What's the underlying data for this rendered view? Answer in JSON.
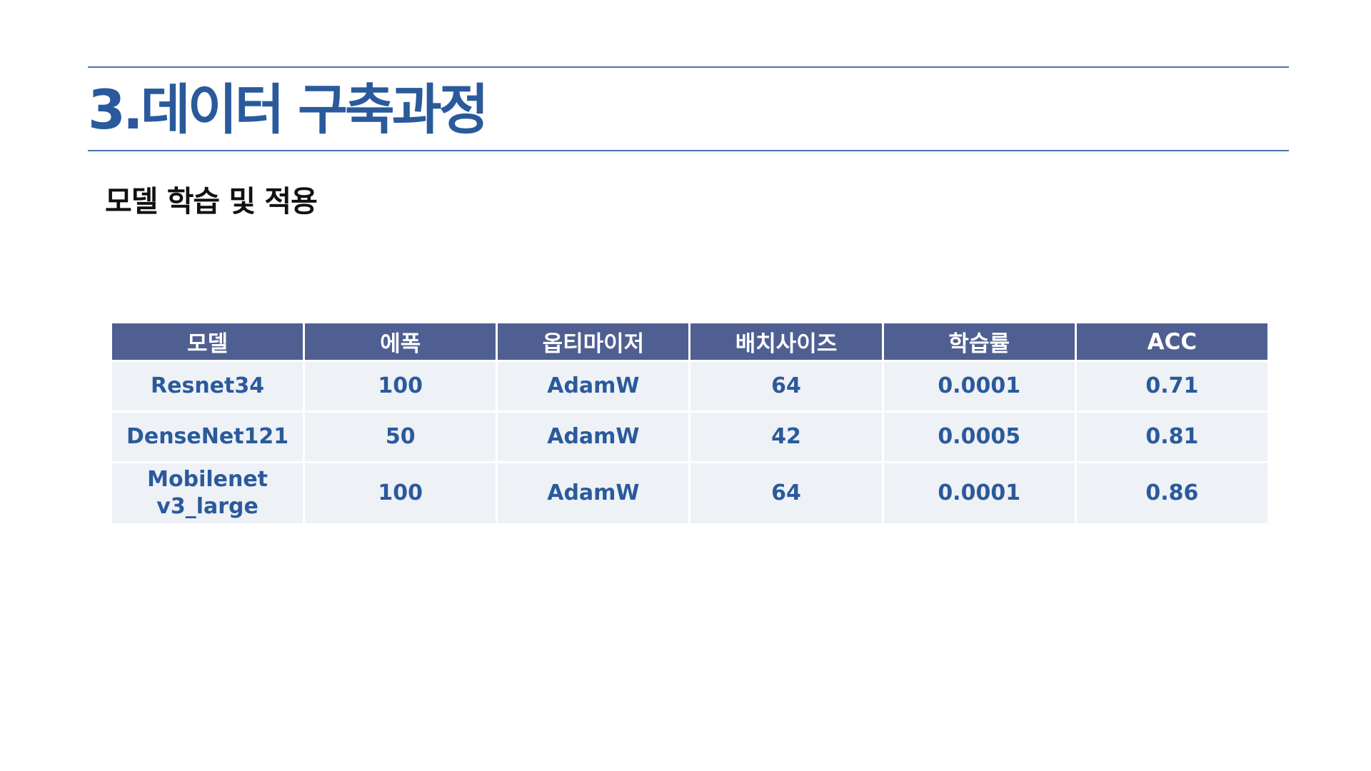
{
  "slide": {
    "title": "3.데이터 구축과정",
    "subtitle": "모델 학습 및 적용"
  },
  "table": {
    "headers": [
      "모델",
      "에폭",
      "옵티마이저",
      "배치사이즈",
      "학습률",
      "ACC"
    ],
    "rows": [
      [
        "Resnet34",
        "100",
        "AdamW",
        "64",
        "0.0001",
        "0.71"
      ],
      [
        "DenseNet121",
        "50",
        "AdamW",
        "42",
        "0.0005",
        "0.81"
      ],
      [
        "Mobilenet v3_large",
        "100",
        "AdamW",
        "64",
        "0.0001",
        "0.86"
      ]
    ]
  },
  "colors": {
    "title": "#2a5a9c",
    "rule": "#4a6fad",
    "header_bg": "#4f5f91",
    "cell_bg": "#eef1f6",
    "cell_text": "#2a5a9c"
  }
}
